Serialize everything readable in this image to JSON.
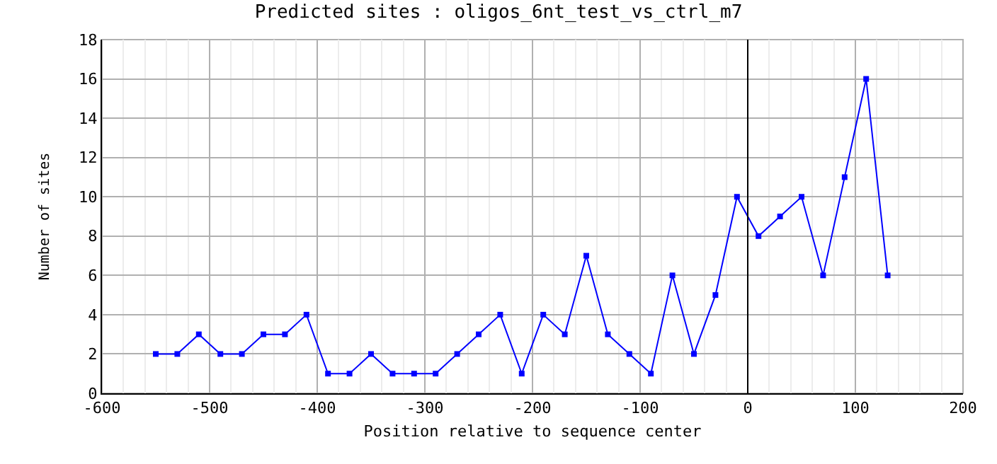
{
  "chart_data": {
    "type": "line",
    "title": "Predicted sites : oligos_6nt_test_vs_ctrl_m7",
    "xlabel": "Position relative to sequence center",
    "ylabel": "Number of sites",
    "x": [
      -550,
      -530,
      -510,
      -490,
      -470,
      -450,
      -430,
      -410,
      -390,
      -370,
      -350,
      -330,
      -310,
      -290,
      -270,
      -250,
      -230,
      -210,
      -190,
      -170,
      -150,
      -130,
      -110,
      -90,
      -70,
      -50,
      -30,
      -10,
      10,
      30,
      50,
      70,
      90,
      110,
      130
    ],
    "series": [
      {
        "color": "#0000ff",
        "values": [
          2,
          2,
          3,
          2,
          2,
          3,
          3,
          4,
          1,
          1,
          2,
          1,
          1,
          1,
          2,
          3,
          4,
          1,
          4,
          3,
          7,
          3,
          2,
          1,
          6,
          2,
          5,
          10,
          8,
          9,
          10,
          6,
          11,
          16,
          6
        ]
      }
    ],
    "xlim": [
      -600,
      200
    ],
    "xticks": [
      -600,
      -500,
      -400,
      -300,
      -200,
      -100,
      0,
      100,
      200
    ],
    "ylim": [
      0,
      18
    ],
    "yticks": [
      0,
      2,
      4,
      6,
      8,
      10,
      12,
      14,
      16,
      18
    ],
    "ref_lines": [
      {
        "axis": "x",
        "value": 0,
        "color": "#000000"
      }
    ],
    "grid": true,
    "marker": "square",
    "line_style": "solid"
  }
}
